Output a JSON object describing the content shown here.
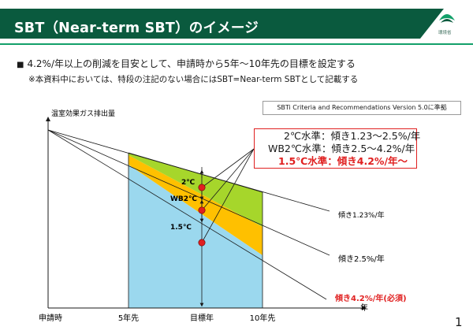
{
  "header": {
    "title": "SBT（Near-term SBT）のイメージ",
    "logo_text": "環境省",
    "colors": {
      "banner": "#0a5a3e",
      "accent": "#13a06a"
    }
  },
  "body": {
    "bullet_marker": "■",
    "bullet": "4.2%/年以上の削減を目安として、申請時から5年～10年先の目標を設定する",
    "note": "※本資料中においては、特段の注記のない場合にはSBT=Near-term SBTとして記載する",
    "tag": "SBTi Criteria and Recommendations Version 5.0に準拠"
  },
  "diagram": {
    "y_axis_label": "温室効果ガス排出量",
    "x_axis_label": "年",
    "x_ticks": [
      "申請時",
      "5年先",
      "目標年",
      "10年先"
    ],
    "band_labels": [
      "2℃",
      "WB2℃",
      "1.5℃"
    ],
    "line_labels": [
      "傾き1.23%/年",
      "傾き2.5%/年",
      "傾き4.2%/年(必須)"
    ],
    "callout": [
      "2℃水準：傾き1.23～2.5%/年",
      "WB2℃水準：傾き2.5～4.2%/年",
      "1.5℃水準：傾き4.2%/年～"
    ],
    "colors": {
      "band_2c": "#a6d62b",
      "band_wb2c": "#ffc000",
      "band_15c": "#9bd8ee",
      "marker": "#e02020",
      "emphasis": "#e02020"
    }
  },
  "page_number": "1"
}
